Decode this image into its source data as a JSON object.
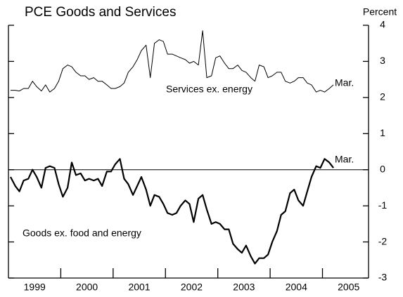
{
  "chart_data": {
    "type": "line",
    "title": "PCE Goods and Services",
    "y_axis_label": "Percent",
    "annotations": [
      "Services ex. energy",
      "Goods ex. food and energy",
      "Mar.",
      "Mar."
    ],
    "x": [
      1999.04,
      1999.13,
      1999.21,
      1999.29,
      1999.38,
      1999.46,
      1999.54,
      1999.63,
      1999.71,
      1999.79,
      1999.88,
      1999.96,
      2000.04,
      2000.13,
      2000.21,
      2000.29,
      2000.38,
      2000.46,
      2000.54,
      2000.63,
      2000.71,
      2000.79,
      2000.88,
      2000.96,
      2001.04,
      2001.13,
      2001.21,
      2001.29,
      2001.38,
      2001.46,
      2001.54,
      2001.63,
      2001.71,
      2001.79,
      2001.88,
      2001.96,
      2002.04,
      2002.13,
      2002.21,
      2002.29,
      2002.38,
      2002.46,
      2002.54,
      2002.63,
      2002.71,
      2002.79,
      2002.88,
      2002.96,
      2003.04,
      2003.13,
      2003.21,
      2003.29,
      2003.38,
      2003.46,
      2003.54,
      2003.63,
      2003.71,
      2003.79,
      2003.88,
      2003.96,
      2004.04,
      2004.13,
      2004.21,
      2004.29,
      2004.38,
      2004.46,
      2004.54,
      2004.63,
      2004.71,
      2004.79,
      2004.88,
      2004.96,
      2005.04,
      2005.13,
      2005.21
    ],
    "series": [
      {
        "name": "Services ex. energy",
        "color": "#000000",
        "width": 1,
        "values": [
          2.2,
          2.2,
          2.18,
          2.25,
          2.25,
          2.45,
          2.3,
          2.18,
          2.35,
          2.15,
          2.25,
          2.45,
          2.8,
          2.9,
          2.85,
          2.7,
          2.6,
          2.6,
          2.5,
          2.55,
          2.45,
          2.45,
          2.35,
          2.25,
          2.25,
          2.3,
          2.4,
          2.7,
          2.85,
          3.05,
          3.3,
          3.45,
          2.55,
          3.5,
          3.6,
          3.55,
          3.2,
          3.2,
          3.15,
          3.1,
          3.05,
          2.95,
          3.0,
          2.9,
          3.85,
          2.55,
          2.6,
          3.1,
          3.15,
          2.95,
          2.8,
          2.8,
          2.9,
          2.75,
          2.7,
          2.55,
          2.45,
          2.9,
          2.85,
          2.55,
          2.6,
          2.7,
          2.7,
          2.45,
          2.4,
          2.45,
          2.55,
          2.55,
          2.4,
          2.35,
          2.15,
          2.2,
          2.15,
          2.25,
          2.35
        ]
      },
      {
        "name": "Goods ex. food and energy",
        "color": "#000000",
        "width": 2.2,
        "values": [
          -0.2,
          -0.45,
          -0.6,
          -0.3,
          -0.25,
          0.0,
          -0.2,
          -0.5,
          0.05,
          0.1,
          0.05,
          -0.4,
          -0.75,
          -0.5,
          0.2,
          -0.15,
          -0.1,
          -0.3,
          -0.25,
          -0.3,
          -0.25,
          -0.45,
          -0.05,
          -0.05,
          0.15,
          0.3,
          -0.25,
          -0.4,
          -0.7,
          -0.45,
          -0.2,
          -0.55,
          -1.0,
          -0.7,
          -0.75,
          -0.95,
          -1.2,
          -1.25,
          -1.2,
          -1.0,
          -0.85,
          -0.95,
          -1.45,
          -0.8,
          -0.7,
          -1.1,
          -1.5,
          -1.45,
          -1.5,
          -1.65,
          -1.65,
          -2.05,
          -2.2,
          -2.3,
          -2.1,
          -2.4,
          -2.6,
          -2.45,
          -2.45,
          -2.35,
          -2.0,
          -1.7,
          -1.25,
          -1.15,
          -0.65,
          -0.55,
          -0.85,
          -1.0,
          -0.6,
          -0.2,
          0.1,
          0.05,
          0.3,
          0.2,
          0.05
        ]
      }
    ],
    "xlim": [
      1999,
      2005.88
    ],
    "xticks": [
      {
        "value": 1999.5,
        "label": "1999"
      },
      {
        "value": 2000.5,
        "label": "2000"
      },
      {
        "value": 2001.5,
        "label": "2001"
      },
      {
        "value": 2002.5,
        "label": "2002"
      },
      {
        "value": 2003.5,
        "label": "2003"
      },
      {
        "value": 2004.5,
        "label": "2004"
      },
      {
        "value": 2005.5,
        "label": "2005"
      }
    ],
    "x_year_ticks": [
      2000,
      2001,
      2002,
      2003,
      2004,
      2005
    ],
    "ylim": [
      -3,
      4
    ],
    "yticks": [
      -3,
      -2,
      -1,
      0,
      1,
      2,
      3,
      4
    ],
    "hline": 0,
    "grid": false
  }
}
